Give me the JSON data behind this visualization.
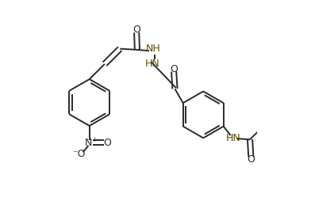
{
  "bg_color": "#ffffff",
  "bond_color": "#2a2a2a",
  "text_color": "#2a2a2a",
  "nh_color": "#5a4a00",
  "lw": 1.4,
  "figsize": [
    3.92,
    2.59
  ],
  "dpi": 100,
  "xlim": [
    0.0,
    1.0
  ],
  "ylim": [
    0.0,
    1.0
  ]
}
